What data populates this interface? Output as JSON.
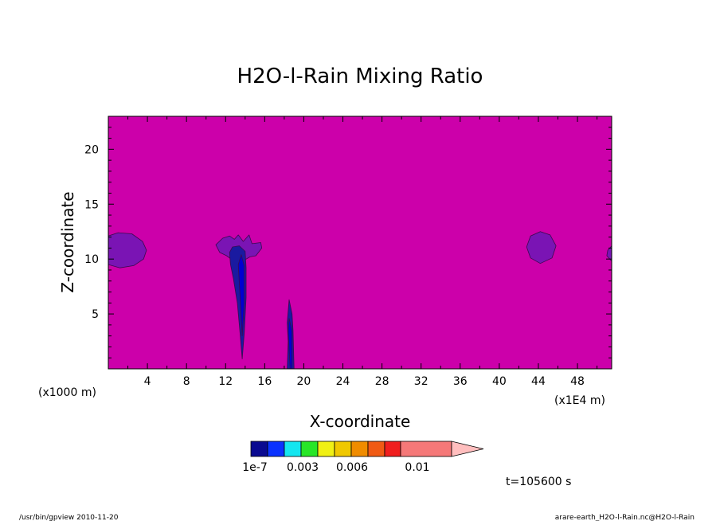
{
  "chart_data": {
    "type": "heatmap",
    "title": "H2O-l-Rain Mixing Ratio",
    "xlabel": "X-coordinate",
    "ylabel": "Z-coordinate",
    "x_unit": "(x1000 m)",
    "x_unit_right": "(x1E4 m)",
    "xlim": [
      0,
      51.5
    ],
    "ylim": [
      0,
      23
    ],
    "x_ticks": [
      4,
      8,
      12,
      16,
      20,
      24,
      28,
      32,
      36,
      40,
      44,
      48
    ],
    "y_ticks": [
      5,
      10,
      15,
      20
    ],
    "background_color": "#cc00aa",
    "features": [
      {
        "name": "cloud-left",
        "color": "#7a14b4",
        "points": [
          [
            0,
            12.1
          ],
          [
            1,
            12.4
          ],
          [
            2.4,
            12.3
          ],
          [
            3.5,
            11.6
          ],
          [
            3.9,
            10.8
          ],
          [
            3.6,
            10
          ],
          [
            2.6,
            9.4
          ],
          [
            1.2,
            9.2
          ],
          [
            0,
            9.5
          ]
        ]
      },
      {
        "name": "cloud-center",
        "color": "#7a14b4",
        "points": [
          [
            11,
            11.3
          ],
          [
            11.7,
            11.9
          ],
          [
            12.4,
            12.1
          ],
          [
            12.9,
            11.8
          ],
          [
            13.3,
            12.2
          ],
          [
            13.8,
            11.6
          ],
          [
            14.4,
            12.2
          ],
          [
            14.7,
            11.4
          ],
          [
            15.6,
            11.5
          ],
          [
            15.7,
            11
          ],
          [
            15.1,
            10.3
          ],
          [
            14.5,
            10.2
          ],
          [
            13.9,
            9.9
          ],
          [
            12.7,
            9.9
          ],
          [
            12.1,
            10.3
          ],
          [
            11.4,
            10.6
          ]
        ]
      },
      {
        "name": "cloud-right",
        "color": "#7a14b4",
        "points": [
          [
            42.8,
            11.1
          ],
          [
            43.2,
            12.1
          ],
          [
            44.2,
            12.5
          ],
          [
            45.2,
            12.2
          ],
          [
            45.8,
            11.2
          ],
          [
            45.4,
            10.1
          ],
          [
            44.2,
            9.6
          ],
          [
            43.2,
            10.1
          ]
        ]
      },
      {
        "name": "cloud-edge",
        "color": "#7a14b4",
        "points": [
          [
            51.5,
            11.2
          ],
          [
            51.1,
            10.8
          ],
          [
            51,
            10.3
          ],
          [
            51.5,
            9.8
          ]
        ]
      },
      {
        "name": "rain-shaft-1",
        "color": "#1a1aa0",
        "points": [
          [
            12.4,
            10.6
          ],
          [
            12.7,
            11.1
          ],
          [
            13.4,
            11.2
          ],
          [
            14,
            10.7
          ],
          [
            14.1,
            9.2
          ],
          [
            14.1,
            6.5
          ],
          [
            13.9,
            3.2
          ],
          [
            13.7,
            0.9
          ],
          [
            13.5,
            3
          ],
          [
            13.2,
            6
          ],
          [
            12.8,
            8.2
          ],
          [
            12.5,
            9.5
          ]
        ]
      },
      {
        "name": "rain-shaft-1-core",
        "color": "#0000d0",
        "points": [
          [
            13.3,
            9.5
          ],
          [
            13.6,
            10.4
          ],
          [
            13.9,
            9.4
          ],
          [
            13.9,
            6
          ],
          [
            13.7,
            3
          ],
          [
            13.5,
            6.2
          ]
        ]
      },
      {
        "name": "rain-shaft-2",
        "color": "#1a1aa0",
        "points": [
          [
            18.5,
            6.3
          ],
          [
            18.8,
            5
          ],
          [
            18.9,
            3.5
          ],
          [
            19,
            0
          ],
          [
            18.3,
            0
          ],
          [
            18.4,
            2.5
          ],
          [
            18.3,
            4.2
          ]
        ]
      },
      {
        "name": "rain-shaft-2-core",
        "color": "#0000d0",
        "points": [
          [
            18.5,
            4.6
          ],
          [
            18.8,
            3.4
          ],
          [
            18.8,
            0
          ],
          [
            18.6,
            0
          ],
          [
            18.4,
            3.4
          ]
        ]
      }
    ],
    "colorbar": {
      "colors": [
        "#0a0a90",
        "#0a32ff",
        "#14e6f0",
        "#28e628",
        "#f0f014",
        "#f0c800",
        "#f08c00",
        "#f05a14",
        "#f01e1e",
        "#f57878",
        "#ffbebe"
      ],
      "labels": [
        "1e-7",
        "0.003",
        "0.006",
        "0.01"
      ]
    },
    "time_label": "t=105600 s"
  },
  "footer": {
    "left": "/usr/bin/gpview  2010-11-20",
    "right": "arare-earth_H2O-l-Rain.nc@H2O-l-Rain"
  }
}
